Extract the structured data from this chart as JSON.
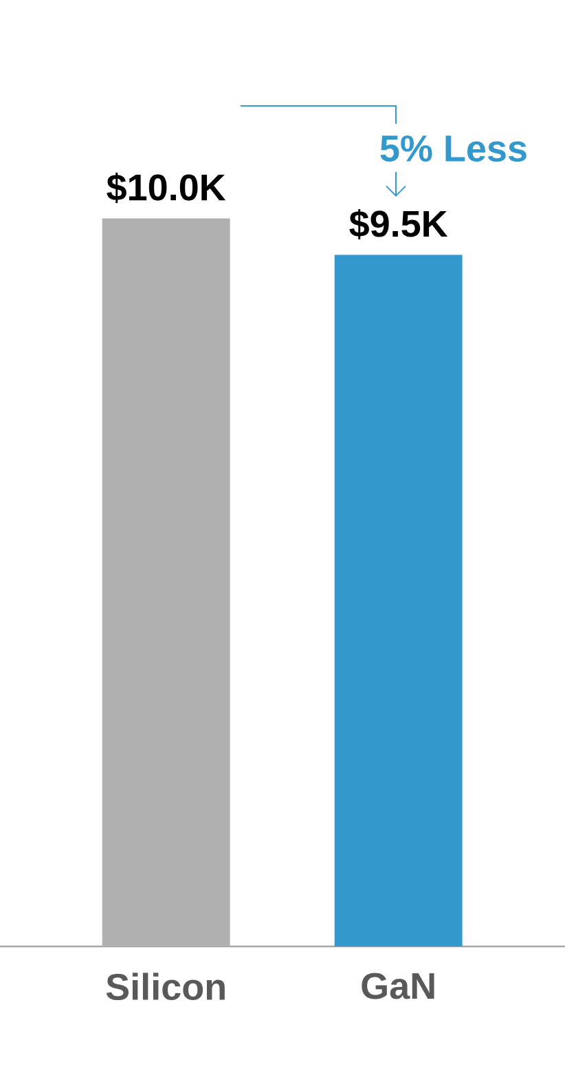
{
  "chart_data": {
    "type": "bar",
    "categories": [
      "Silicon",
      "GaN"
    ],
    "values": [
      10000,
      9500
    ],
    "colors": [
      "#b0b0b0",
      "#3399cc"
    ],
    "value_labels": [
      "$10.0K",
      "$9.5K"
    ],
    "annotations": [
      "5% Less"
    ]
  }
}
